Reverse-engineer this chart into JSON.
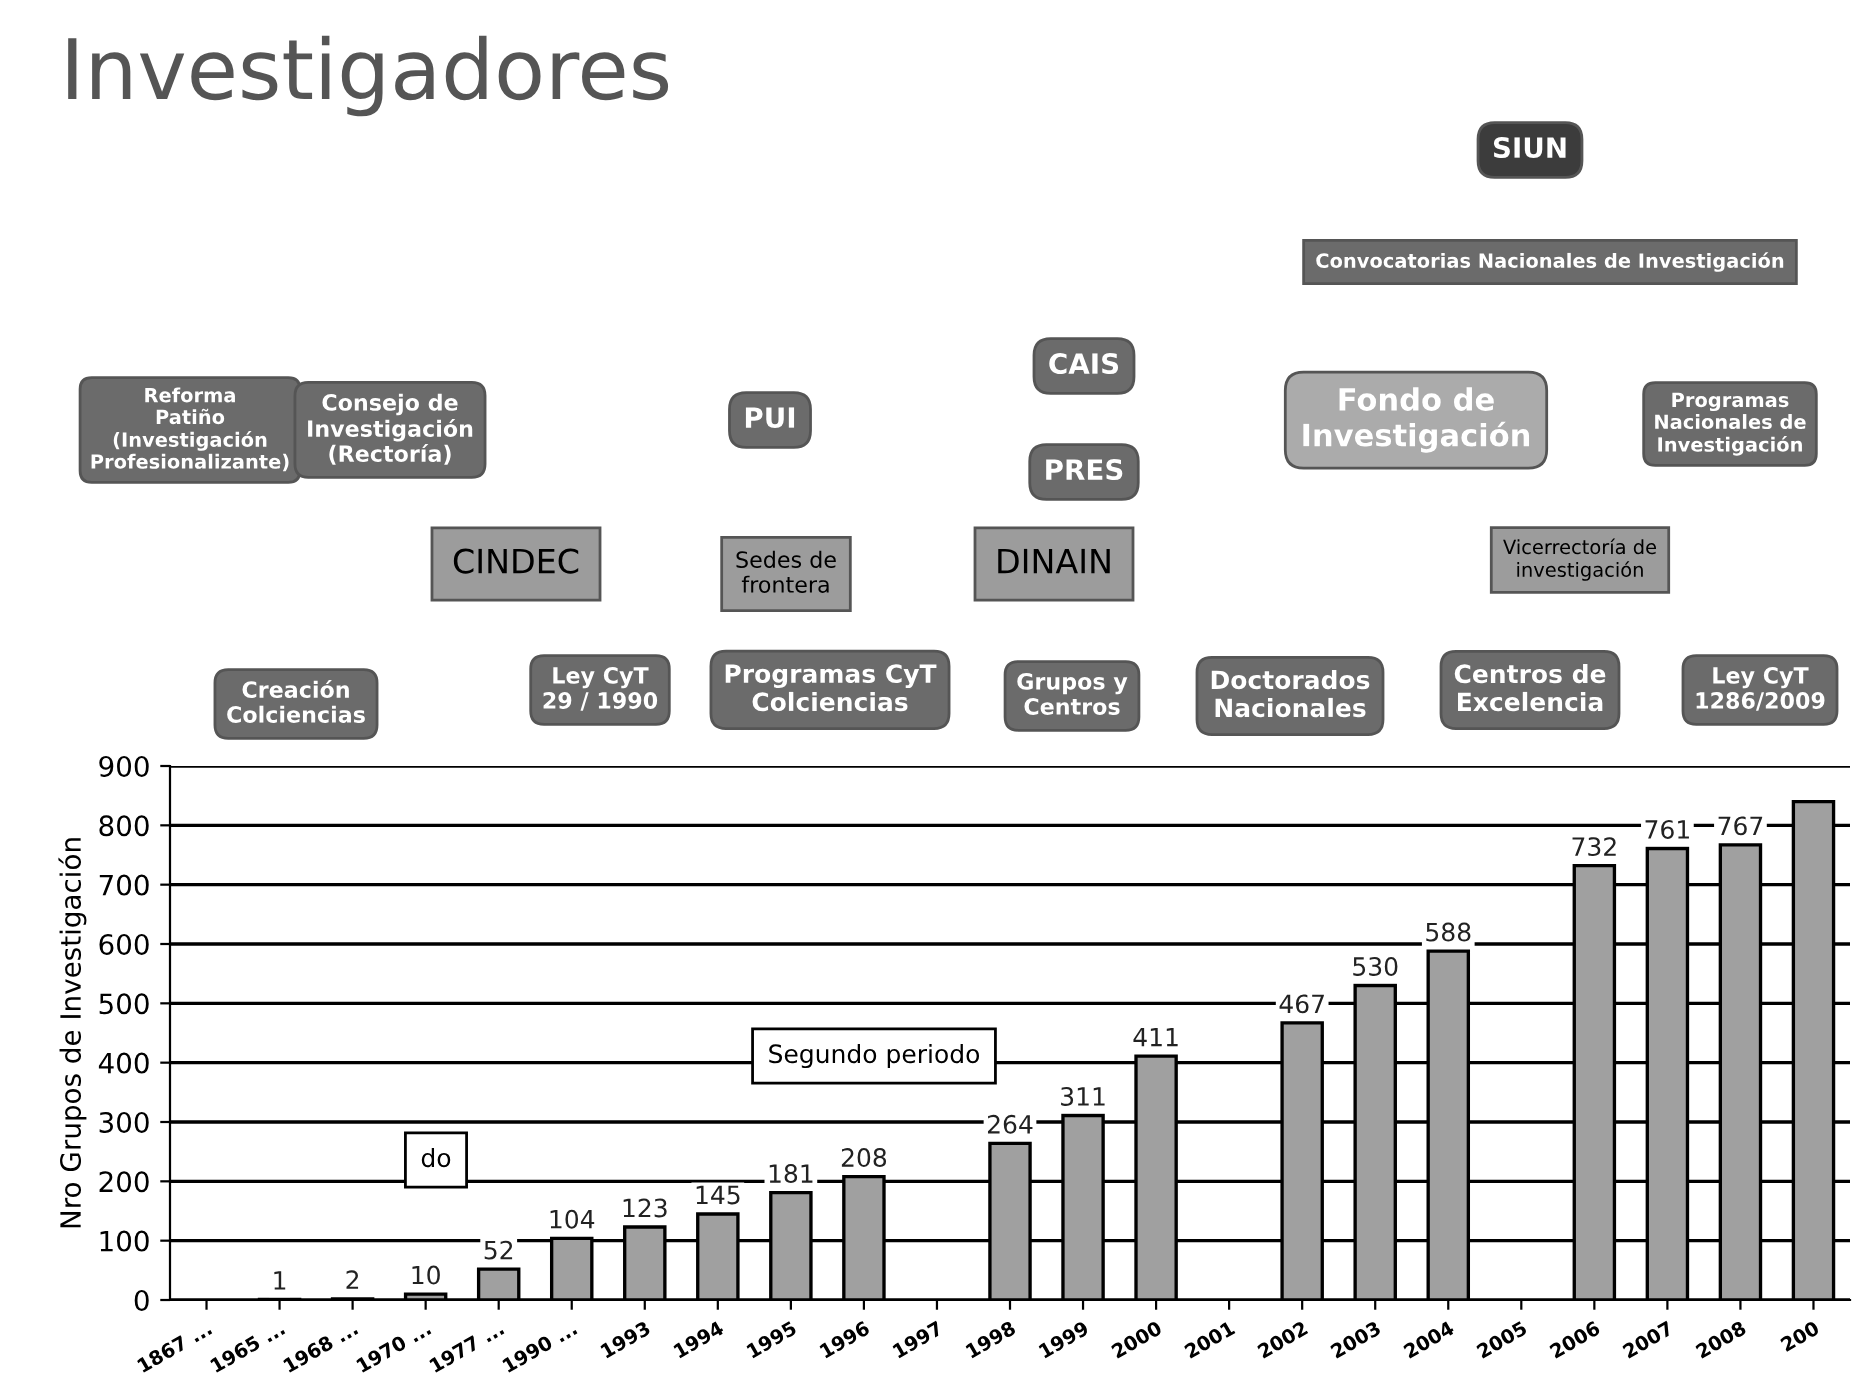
{
  "chart_data": {
    "type": "bar",
    "title": "Investigadores",
    "ylabel": "Nro Grupos de Investigación",
    "categories": [
      "1867 ...",
      "1965 ...",
      "1968 ...",
      "1970 ...",
      "1977 ...",
      "1990 ...",
      "1993",
      "1994",
      "1995",
      "1996",
      "1997",
      "1998",
      "1999",
      "2000",
      "2001",
      "2002",
      "2003",
      "2004",
      "2005",
      "2006",
      "2007",
      "2008",
      "200"
    ],
    "values": [
      null,
      1,
      2,
      10,
      52,
      104,
      123,
      145,
      181,
      208,
      null,
      264,
      311,
      411,
      null,
      467,
      530,
      588,
      null,
      732,
      761,
      767,
      840
    ],
    "value_labels": [
      null,
      "1",
      "2",
      "10",
      "52",
      "104",
      "123",
      "145",
      "181",
      "208",
      null,
      "264",
      "311",
      "411",
      null,
      "467",
      "530",
      "588",
      null,
      "732",
      "761",
      "767",
      null
    ],
    "color": "#a0a0a0",
    "ylim": [
      0,
      900
    ],
    "yticks": [
      0,
      100,
      200,
      300,
      400,
      500,
      600,
      700,
      800,
      900
    ],
    "grid": "y",
    "annotations": [
      "Reforma\nPatiño\n(Investigación\nProfesionalizante)",
      "Consejo de\nInvestigación\n(Rectoría)",
      "CINDEC",
      "Creación\nColciencias",
      "Ley CyT\n29 / 1990",
      "PUI",
      "Sedes de\nfrontera",
      "Programas CyT\nColciencias",
      "CAIS",
      "PRES",
      "DINAIN",
      "Grupos y\nCentros",
      "Doctorados\nNacionales",
      "Fondo de\nInvestigación",
      "SIUN",
      "Convocatorias Nacionales de Investigación",
      "Vicerrectoría de\ninvestigación",
      "Centros de\nExcelencia",
      "Programas\nNacionales de\nInvestigación",
      "Ley CyT\n1286/2009",
      "do",
      "Segundo periodo"
    ]
  }
}
